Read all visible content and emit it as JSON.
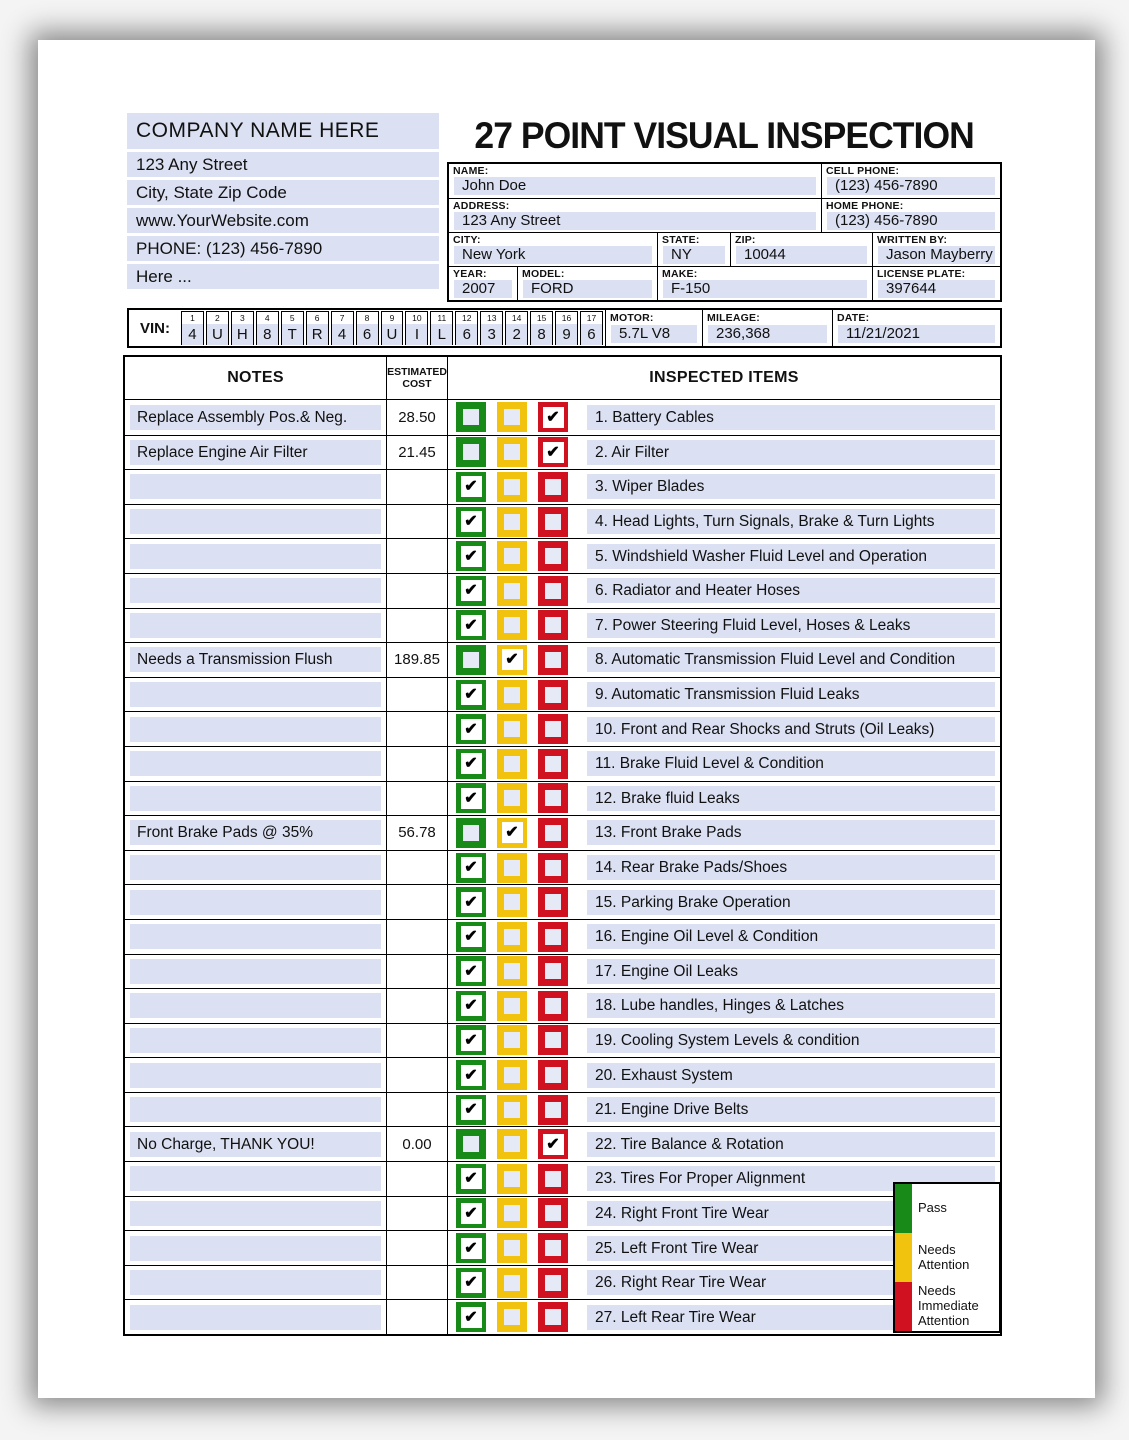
{
  "company": {
    "name": "COMPANY NAME HERE",
    "lines": [
      "123 Any Street",
      "City, State Zip Code",
      "www.YourWebsite.com",
      "PHONE: (123) 456-7890",
      "Here ..."
    ]
  },
  "title": "27 POINT VISUAL INSPECTION",
  "customer": {
    "name": {
      "label": "NAME:",
      "value": "John Doe"
    },
    "cell_phone": {
      "label": "CELL PHONE:",
      "value": "(123) 456-7890"
    },
    "address": {
      "label": "ADDRESS:",
      "value": "123 Any Street"
    },
    "home_phone": {
      "label": "HOME PHONE:",
      "value": "(123) 456-7890"
    },
    "city": {
      "label": "CITY:",
      "value": "New York"
    },
    "state": {
      "label": "STATE:",
      "value": "NY"
    },
    "zip": {
      "label": "ZIP:",
      "value": "10044"
    },
    "written_by": {
      "label": "WRITTEN BY:",
      "value": "Jason Mayberry"
    },
    "year": {
      "label": "YEAR:",
      "value": "2007"
    },
    "model": {
      "label": "MODEL:",
      "value": "FORD"
    },
    "make": {
      "label": "MAKE:",
      "value": "F-150"
    },
    "license_plate": {
      "label": "LICENSE PLATE:",
      "value": "397644"
    }
  },
  "vin": {
    "label": "VIN:",
    "positions": [
      "1",
      "2",
      "3",
      "4",
      "5",
      "6",
      "7",
      "8",
      "9",
      "10",
      "11",
      "12",
      "13",
      "14",
      "15",
      "16",
      "17"
    ],
    "characters": [
      "4",
      "U",
      "H",
      "8",
      "T",
      "R",
      "4",
      "6",
      "U",
      "I",
      "L",
      "6",
      "3",
      "2",
      "8",
      "9",
      "6"
    ]
  },
  "motor": {
    "label": "MOTOR:",
    "value": "5.7L V8"
  },
  "mileage": {
    "label": "MILEAGE:",
    "value": "236,368"
  },
  "date": {
    "label": "DATE:",
    "value": "11/21/2021"
  },
  "table": {
    "headers": {
      "notes": "NOTES",
      "cost": "ESTIMATED COST",
      "items": "INSPECTED ITEMS"
    },
    "rows": [
      {
        "note": "Replace Assembly Pos.& Neg.",
        "cost": "28.50",
        "status": "immediate",
        "label": "1. Battery Cables"
      },
      {
        "note": "Replace Engine Air Filter",
        "cost": "21.45",
        "status": "immediate",
        "label": "2. Air Filter"
      },
      {
        "note": "",
        "cost": "",
        "status": "pass",
        "label": "3. Wiper Blades"
      },
      {
        "note": "",
        "cost": "",
        "status": "pass",
        "label": "4. Head Lights, Turn Signals, Brake & Turn Lights"
      },
      {
        "note": "",
        "cost": "",
        "status": "pass",
        "label": "5. Windshield Washer Fluid Level and Operation"
      },
      {
        "note": "",
        "cost": "",
        "status": "pass",
        "label": "6. Radiator and Heater Hoses"
      },
      {
        "note": "",
        "cost": "",
        "status": "pass",
        "label": "7. Power Steering Fluid Level, Hoses & Leaks"
      },
      {
        "note": "Needs a Transmission Flush",
        "cost": "189.85",
        "status": "attention",
        "label": "8. Automatic Transmission Fluid Level and Condition"
      },
      {
        "note": "",
        "cost": "",
        "status": "pass",
        "label": "9. Automatic Transmission Fluid Leaks"
      },
      {
        "note": "",
        "cost": "",
        "status": "pass",
        "label": "10. Front and Rear Shocks and Struts (Oil Leaks)"
      },
      {
        "note": "",
        "cost": "",
        "status": "pass",
        "label": "11. Brake Fluid Level & Condition"
      },
      {
        "note": "",
        "cost": "",
        "status": "pass",
        "label": "12. Brake fluid Leaks"
      },
      {
        "note": "Front Brake Pads @ 35%",
        "cost": "56.78",
        "status": "attention",
        "label": "13. Front Brake Pads"
      },
      {
        "note": "",
        "cost": "",
        "status": "pass",
        "label": "14. Rear Brake Pads/Shoes"
      },
      {
        "note": "",
        "cost": "",
        "status": "pass",
        "label": "15. Parking Brake Operation"
      },
      {
        "note": "",
        "cost": "",
        "status": "pass",
        "label": "16. Engine Oil Level & Condition"
      },
      {
        "note": "",
        "cost": "",
        "status": "pass",
        "label": "17. Engine Oil Leaks"
      },
      {
        "note": "",
        "cost": "",
        "status": "pass",
        "label": "18. Lube handles, Hinges & Latches"
      },
      {
        "note": "",
        "cost": "",
        "status": "pass",
        "label": "19. Cooling System Levels & condition"
      },
      {
        "note": "",
        "cost": "",
        "status": "pass",
        "label": "20. Exhaust System"
      },
      {
        "note": "",
        "cost": "",
        "status": "pass",
        "label": "21. Engine Drive Belts"
      },
      {
        "note": "No Charge, THANK YOU!",
        "cost": "0.00",
        "status": "immediate",
        "label": "22. Tire Balance & Rotation"
      },
      {
        "note": "",
        "cost": "",
        "status": "pass",
        "label": "23. Tires For Proper Alignment"
      },
      {
        "note": "",
        "cost": "",
        "status": "pass",
        "label": "24. Right Front Tire Wear"
      },
      {
        "note": "",
        "cost": "",
        "status": "pass",
        "label": "25. Left Front Tire Wear"
      },
      {
        "note": "",
        "cost": "",
        "status": "pass",
        "label": "26. Right Rear Tire Wear"
      },
      {
        "note": "",
        "cost": "",
        "status": "pass",
        "label": "27. Left Rear Tire Wear"
      }
    ]
  },
  "legend": [
    {
      "status": "pass",
      "label": "Pass"
    },
    {
      "status": "attention",
      "label": "Needs Attention"
    },
    {
      "status": "immediate",
      "label": "Needs Immediate Attention"
    }
  ],
  "colors": {
    "pass": "#178a17",
    "attention": "#f1c30f",
    "immediate": "#d0111f",
    "field": "#dbe0f2"
  }
}
